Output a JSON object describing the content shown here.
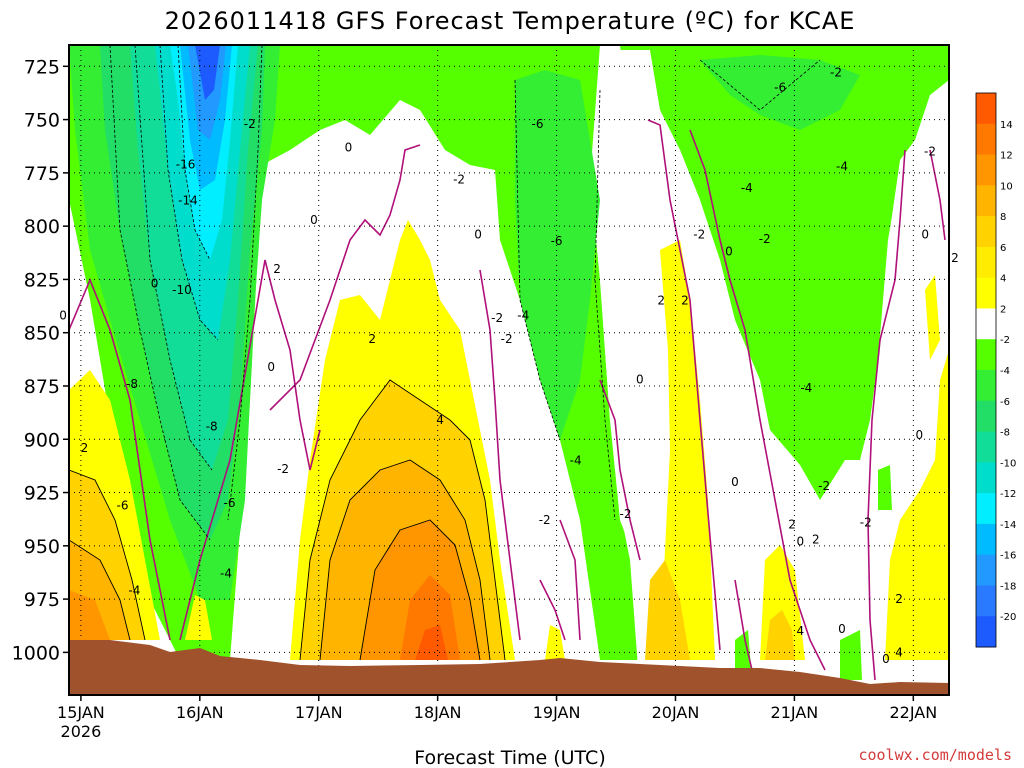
{
  "chart_data": {
    "type": "contour",
    "title": "2026011418 GFS Forecast Temperature (ºC) for KCAE",
    "xlabel": "Forecast Time (UTC)",
    "ylabel": "",
    "y_ticks": [
      725,
      750,
      775,
      800,
      825,
      850,
      875,
      900,
      925,
      950,
      975,
      1000
    ],
    "ylim": [
      1020,
      715
    ],
    "x_ticks": [
      {
        "label": "15JAN",
        "sub": "2026",
        "day": 0
      },
      {
        "label": "16JAN",
        "sub": "",
        "day": 1
      },
      {
        "label": "17JAN",
        "sub": "",
        "day": 2
      },
      {
        "label": "18JAN",
        "sub": "",
        "day": 3
      },
      {
        "label": "19JAN",
        "sub": "",
        "day": 4
      },
      {
        "label": "20JAN",
        "sub": "",
        "day": 5
      },
      {
        "label": "21JAN",
        "sub": "",
        "day": 6
      },
      {
        "label": "22JAN",
        "sub": "",
        "day": 7
      }
    ],
    "xlim": [
      -0.1,
      7.3
    ],
    "colorbar": {
      "levels": [
        14,
        12,
        10,
        8,
        6,
        4,
        2,
        -2,
        -4,
        -6,
        -8,
        -10,
        -12,
        -14,
        -16,
        -18,
        -20
      ],
      "colors": [
        "#ff5a00",
        "#ff7800",
        "#ff9600",
        "#ffb400",
        "#ffd200",
        "#ffec00",
        "#ffff00",
        "#ffffff",
        "#55ff00",
        "#33ee33",
        "#22dd66",
        "#11dd99",
        "#00ddcc",
        "#00eeff",
        "#00bbff",
        "#2299ff",
        "#2a7aff",
        "#1e5bff"
      ]
    },
    "contour_labels": [
      {
        "text": "-2",
        "day": 6.35,
        "p": 728
      },
      {
        "text": "-6",
        "day": 5.88,
        "p": 735
      },
      {
        "text": "-2",
        "day": 1.42,
        "p": 752
      },
      {
        "text": "-6",
        "day": 3.84,
        "p": 752
      },
      {
        "text": "0",
        "day": 2.25,
        "p": 763
      },
      {
        "text": "-2",
        "day": 7.14,
        "p": 765
      },
      {
        "text": "-16",
        "day": 0.88,
        "p": 771
      },
      {
        "text": "-2",
        "day": 3.18,
        "p": 778
      },
      {
        "text": "-4",
        "day": 5.6,
        "p": 782
      },
      {
        "text": "-4",
        "day": 6.4,
        "p": 772
      },
      {
        "text": "-14",
        "day": 0.9,
        "p": 788
      },
      {
        "text": "0",
        "day": 1.96,
        "p": 797
      },
      {
        "text": "0",
        "day": 3.34,
        "p": 804
      },
      {
        "text": "-6",
        "day": 4.0,
        "p": 807
      },
      {
        "text": "-2",
        "day": 5.2,
        "p": 804
      },
      {
        "text": "-2",
        "day": 5.75,
        "p": 806
      },
      {
        "text": "0",
        "day": 5.45,
        "p": 812
      },
      {
        "text": "0",
        "day": 7.1,
        "p": 804
      },
      {
        "text": "2",
        "day": 7.35,
        "p": 815
      },
      {
        "text": "2",
        "day": 1.65,
        "p": 820
      },
      {
        "text": "0",
        "day": 0.62,
        "p": 827
      },
      {
        "text": "-10",
        "day": 0.85,
        "p": 830
      },
      {
        "text": "2",
        "day": 4.88,
        "p": 835
      },
      {
        "text": "2",
        "day": 5.08,
        "p": 835
      },
      {
        "text": "0",
        "day": -0.15,
        "p": 842
      },
      {
        "text": "-2",
        "day": 3.5,
        "p": 843
      },
      {
        "text": "-4",
        "day": 3.72,
        "p": 842
      },
      {
        "text": "2",
        "day": 2.45,
        "p": 853
      },
      {
        "text": "-2",
        "day": 3.58,
        "p": 853
      },
      {
        "text": "0",
        "day": 1.6,
        "p": 866
      },
      {
        "text": "-8",
        "day": 0.43,
        "p": 874
      },
      {
        "text": "0",
        "day": 4.7,
        "p": 872
      },
      {
        "text": "-4",
        "day": 6.1,
        "p": 876
      },
      {
        "text": "4",
        "day": 3.02,
        "p": 891
      },
      {
        "text": "-8",
        "day": 1.1,
        "p": 894
      },
      {
        "text": "0",
        "day": 7.05,
        "p": 898
      },
      {
        "text": "2",
        "day": 0.03,
        "p": 904
      },
      {
        "text": "-4",
        "day": 4.16,
        "p": 910
      },
      {
        "text": "-2",
        "day": 1.7,
        "p": 914
      },
      {
        "text": "0",
        "day": 5.5,
        "p": 920
      },
      {
        "text": "-2",
        "day": 6.25,
        "p": 922
      },
      {
        "text": "-6",
        "day": 0.35,
        "p": 931
      },
      {
        "text": "-6",
        "day": 1.25,
        "p": 930
      },
      {
        "text": "-2",
        "day": 4.58,
        "p": 935
      },
      {
        "text": "-2",
        "day": 3.9,
        "p": 938
      },
      {
        "text": "2",
        "day": 5.98,
        "p": 940
      },
      {
        "text": "-2",
        "day": 6.6,
        "p": 939
      },
      {
        "text": "0",
        "day": 6.05,
        "p": 948
      },
      {
        "text": "2",
        "day": 6.18,
        "p": 947
      },
      {
        "text": "-4",
        "day": 1.22,
        "p": 963
      },
      {
        "text": "-4",
        "day": 0.45,
        "p": 971
      },
      {
        "text": "2",
        "day": 6.88,
        "p": 975
      },
      {
        "text": "4",
        "day": 6.05,
        "p": 990
      },
      {
        "text": "0",
        "day": 6.4,
        "p": 989
      },
      {
        "text": "4",
        "day": 6.88,
        "p": 1000
      },
      {
        "text": "0",
        "day": 6.77,
        "p": 1003
      }
    ]
  },
  "credit": "coolwx.com/models"
}
